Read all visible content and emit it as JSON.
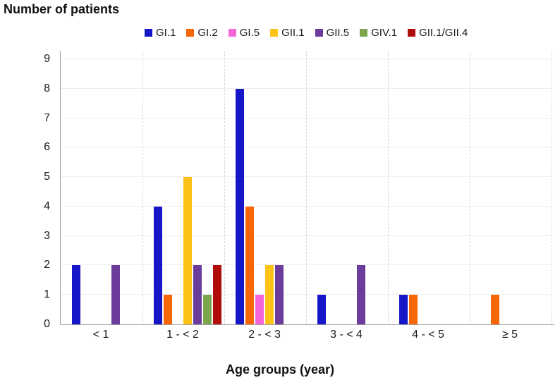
{
  "chart_data": {
    "type": "bar",
    "title": "Number of patients",
    "xlabel": "Age groups (year)",
    "ylabel": "Number of patients",
    "ylim": [
      0,
      9
    ],
    "yticks": [
      0,
      1,
      2,
      3,
      4,
      5,
      6,
      7,
      8,
      9
    ],
    "grid": {
      "horizontal": "light solid lines at each integer",
      "vertical": "dashed separators between age groups"
    },
    "legend_position": "top-center",
    "categories": [
      "< 1",
      "1 - < 2",
      "2 - < 3",
      "3 - < 4",
      "4 - < 5",
      "≥ 5"
    ],
    "series": [
      {
        "name": "GI.1",
        "color": "#1616c9",
        "values": [
          2,
          4,
          8,
          1,
          1,
          0
        ]
      },
      {
        "name": "GI.2",
        "color": "#f96605",
        "values": [
          0,
          1,
          4,
          0,
          1,
          1
        ]
      },
      {
        "name": "GI.5",
        "color": "#f564d9",
        "values": [
          0,
          0,
          1,
          0,
          0,
          0
        ]
      },
      {
        "name": "GII.1",
        "color": "#fdc216",
        "values": [
          0,
          5,
          2,
          0,
          0,
          0
        ]
      },
      {
        "name": "GII.5",
        "color": "#6b3c9c",
        "values": [
          2,
          2,
          2,
          2,
          0,
          0
        ]
      },
      {
        "name": "GIV.1",
        "color": "#7ca64e",
        "values": [
          0,
          1,
          0,
          0,
          0,
          0
        ]
      },
      {
        "name": "GII.1/GII.4",
        "color": "#b00c0c",
        "values": [
          0,
          2,
          0,
          0,
          0,
          0
        ]
      }
    ]
  },
  "colors": {
    "axis": "#a0a0a0",
    "horizontal_gridline": "#eeeeee",
    "group_separator": "#d6d6d6",
    "text": "#111111"
  }
}
